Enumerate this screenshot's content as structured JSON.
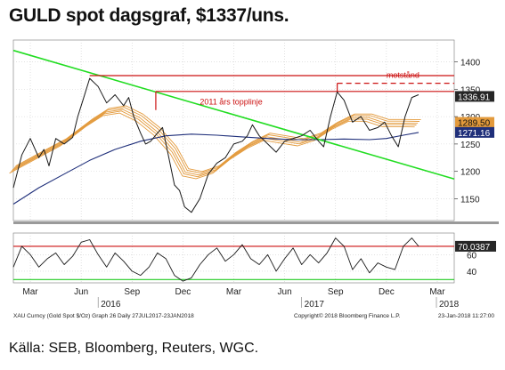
{
  "header": {
    "title": "GULD spot dagsgraf, $1337/uns."
  },
  "footer": {
    "source": "Källa: SEB, Bloomberg, Reuters, WGC."
  },
  "colors": {
    "price": "#1a1a1a",
    "ma_long": "#1f2f7a",
    "ma_band": "#e39a3c",
    "trend": "#22dd22",
    "resistance": "#cc1111",
    "grid": "#cfcfcf",
    "rsi_upper": "#cc1111",
    "rsi_lower": "#22cc22",
    "current_tag": "#2a2a2a"
  },
  "chart_data": [
    {
      "type": "line",
      "title": "GULD spot dagsgraf, $1337/uns.",
      "ylim": [
        1110,
        1440
      ],
      "yticks": [
        1150,
        1200,
        1250,
        1300,
        1350,
        1400
      ],
      "ytick_labels": [
        "1150",
        "1200",
        "1250",
        "1300",
        "1350",
        "1400"
      ],
      "x_month_ticks": [
        2.5,
        5.5,
        8.5,
        11.5,
        14.5,
        17.5,
        20.5,
        23.5,
        26.5
      ],
      "x_month_labels": [
        "Mar",
        "Jun",
        "Sep",
        "Dec",
        "Mar",
        "Jun",
        "Sep",
        "Dec",
        "Mar"
      ],
      "xlim": [
        1.5,
        27.5
      ],
      "year_ticks": [
        6.5,
        18.5,
        29.5
      ],
      "year_labels": [
        "2016",
        "2017",
        "2018"
      ],
      "series": [
        {
          "role": "price",
          "x": [
            1.5,
            2.0,
            2.5,
            3.0,
            3.3,
            3.6,
            4.0,
            4.5,
            5.0,
            5.3,
            5.6,
            6.0,
            6.5,
            7.0,
            7.5,
            8.0,
            8.3,
            8.6,
            9.0,
            9.3,
            9.6,
            10.0,
            10.3,
            10.6,
            11.0,
            11.3,
            11.6,
            12.0,
            12.5,
            13.0,
            13.5,
            14.0,
            14.5,
            15.0,
            15.3,
            15.6,
            16.0,
            16.5,
            17.0,
            17.5,
            18.0,
            18.5,
            19.0,
            19.5,
            19.8,
            20.2,
            20.6,
            21.0,
            21.5,
            22.0,
            22.5,
            23.0,
            23.4,
            23.8,
            24.2,
            24.6,
            25.0,
            25.4
          ],
          "y": [
            1170,
            1230,
            1260,
            1225,
            1240,
            1210,
            1260,
            1250,
            1262,
            1300,
            1330,
            1370,
            1355,
            1325,
            1340,
            1320,
            1335,
            1300,
            1270,
            1250,
            1255,
            1270,
            1280,
            1235,
            1175,
            1165,
            1135,
            1125,
            1150,
            1195,
            1215,
            1225,
            1250,
            1255,
            1265,
            1285,
            1265,
            1250,
            1235,
            1255,
            1260,
            1265,
            1275,
            1255,
            1245,
            1300,
            1345,
            1330,
            1290,
            1300,
            1275,
            1280,
            1290,
            1265,
            1245,
            1300,
            1335,
            1340
          ],
          "labels": []
        },
        {
          "role": "ma_long",
          "x": [
            1.5,
            3,
            4.5,
            6,
            7.5,
            9,
            10.5,
            12,
            13.5,
            15,
            16.5,
            18,
            19.5,
            21,
            22.5,
            23.5,
            24.5,
            25.4
          ],
          "y": [
            1140,
            1170,
            1195,
            1220,
            1240,
            1255,
            1265,
            1268,
            1266,
            1263,
            1260,
            1258,
            1258,
            1259,
            1258,
            1260,
            1266,
            1271.16
          ]
        },
        {
          "role": "ma_band",
          "x": [
            1.5,
            3,
            4.5,
            6,
            7,
            8,
            9,
            10,
            11,
            11.7,
            12.5,
            13.5,
            14.5,
            15.5,
            16.5,
            17.5,
            18.5,
            19.5,
            20.5,
            21.5,
            22.5,
            23.5,
            24.5,
            25.4
          ],
          "y": [
            1205,
            1230,
            1255,
            1290,
            1310,
            1315,
            1300,
            1275,
            1240,
            1200,
            1195,
            1205,
            1230,
            1250,
            1265,
            1260,
            1255,
            1265,
            1285,
            1300,
            1300,
            1290,
            1290,
            1289.5
          ]
        }
      ],
      "reference_lines": [
        {
          "name": "trend",
          "from": [
            1.5,
            1421
          ],
          "to": [
            27.5,
            1186
          ]
        },
        {
          "name": "long-top",
          "from": [
            6.0,
            1375
          ],
          "to": [
            27.5,
            1375
          ]
        },
        {
          "name": "2011-top",
          "from": [
            9.9,
            1346
          ],
          "to": [
            27.5,
            1346
          ]
        },
        {
          "name": "motstand",
          "from": [
            20.6,
            1361
          ],
          "to": [
            27.5,
            1361
          ]
        }
      ],
      "annotations": [
        {
          "text": "2011 års topplinje",
          "x": 12.5,
          "y": 1322
        },
        {
          "text": "motstånd",
          "x": 23.5,
          "y": 1371
        }
      ],
      "current_values": [
        {
          "label": "1336.91",
          "y": 1336.91,
          "style": "dark"
        },
        {
          "label": "1289.50",
          "y": 1289.5,
          "style": "orange"
        },
        {
          "label": "1271.16",
          "y": 1271.16,
          "style": "navy"
        }
      ]
    },
    {
      "type": "line",
      "title": "",
      "ylim": [
        26,
        86
      ],
      "yticks": [
        40,
        60
      ],
      "ytick_labels": [
        "40",
        "60"
      ],
      "xlim": [
        1.5,
        27.5
      ],
      "thresholds": [
        {
          "name": "overbought",
          "y": 70
        },
        {
          "name": "oversold",
          "y": 30
        }
      ],
      "series": [
        {
          "role": "rsi",
          "x": [
            1.5,
            2.0,
            2.5,
            3.0,
            3.5,
            4.0,
            4.5,
            5.0,
            5.5,
            6.0,
            6.5,
            7.0,
            7.5,
            8.0,
            8.5,
            9.0,
            9.5,
            10.0,
            10.5,
            11.0,
            11.5,
            12.0,
            12.5,
            13.0,
            13.5,
            14.0,
            14.5,
            15.0,
            15.5,
            16.0,
            16.5,
            17.0,
            17.5,
            18.0,
            18.5,
            19.0,
            19.5,
            20.0,
            20.5,
            21.0,
            21.5,
            22.0,
            22.5,
            23.0,
            23.5,
            24.0,
            24.5,
            25.0,
            25.4
          ],
          "y": [
            45,
            70,
            60,
            45,
            55,
            62,
            48,
            58,
            75,
            78,
            60,
            45,
            62,
            52,
            40,
            35,
            45,
            62,
            55,
            35,
            28,
            32,
            48,
            60,
            68,
            52,
            60,
            72,
            55,
            48,
            60,
            40,
            55,
            68,
            48,
            60,
            50,
            62,
            80,
            70,
            42,
            55,
            38,
            50,
            45,
            42,
            70,
            80,
            70.04
          ]
        }
      ],
      "current_values": [
        {
          "label": "70.0387",
          "y": 70.0387,
          "style": "dark"
        }
      ]
    }
  ],
  "bloomberg": {
    "left_caption": "XAU Curncy (Gold Spot  $/Oz) Graph 26  Daily 27JUL2017-23JAN2018",
    "center_caption": "Copyright© 2018 Bloomberg Finance L.P.",
    "right_caption": "23-Jan-2018 11:27:00"
  }
}
